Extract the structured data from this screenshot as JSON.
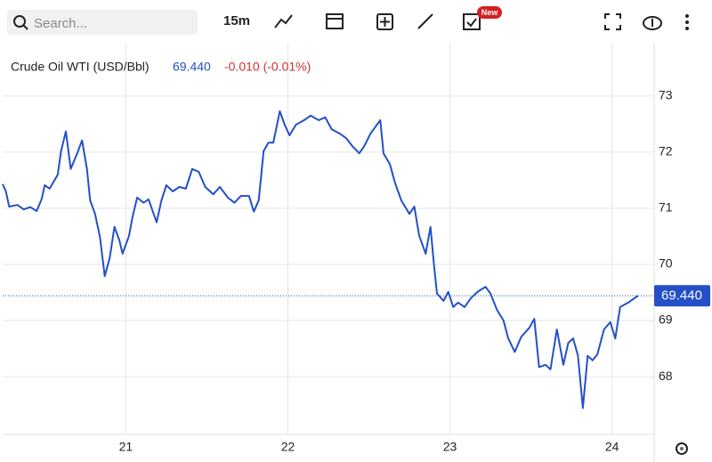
{
  "toolbar": {
    "search_placeholder": "Search...",
    "interval": "15m",
    "badge": "New"
  },
  "chart_data": {
    "type": "line",
    "change": "-0.010 (-0.01%)",
    "last": {
      "value": 69.44,
      "label": "69.440"
    },
    "x": [
      20.24,
      20.26,
      20.28,
      20.33,
      20.37,
      20.41,
      20.45,
      20.48,
      20.5,
      20.53,
      20.58,
      20.6,
      20.63,
      20.66,
      20.7,
      20.73,
      20.76,
      20.78,
      20.81,
      20.84,
      20.87,
      20.9,
      20.93,
      20.96,
      20.98,
      21.02,
      21.04,
      21.07,
      21.11,
      21.14,
      21.19,
      21.22,
      21.25,
      21.29,
      21.33,
      21.37,
      21.41,
      21.45,
      21.49,
      21.54,
      21.58,
      21.63,
      21.67,
      21.71,
      21.76,
      21.79,
      21.82,
      21.85,
      21.88,
      21.91,
      21.95,
      21.98,
      22.01,
      22.05,
      22.1,
      22.14,
      22.19,
      22.23,
      22.27,
      22.32,
      22.36,
      22.4,
      22.44,
      22.47,
      22.51,
      22.55,
      22.57,
      22.59,
      22.63,
      22.66,
      22.7,
      22.75,
      22.78,
      22.81,
      22.85,
      22.88,
      22.9,
      22.92,
      22.96,
      22.99,
      23.02,
      23.05,
      23.09,
      23.13,
      23.17,
      23.22,
      23.25,
      23.29,
      23.33,
      23.36,
      23.4,
      23.44,
      23.49,
      23.52,
      23.55,
      23.59,
      23.62,
      23.66,
      23.7,
      23.73,
      23.76,
      23.79,
      23.82,
      23.85,
      23.88,
      23.91,
      23.95,
      23.99,
      24.02,
      24.05,
      24.1,
      24.13,
      24.16
    ],
    "series": [
      {
        "name": "Crude Oil WTI (USD/Bbl)",
        "color": "#2350c8",
        "values": [
          71.43,
          71.3,
          71.03,
          71.06,
          70.98,
          71.02,
          70.95,
          71.16,
          71.41,
          71.35,
          71.6,
          72.02,
          72.37,
          71.7,
          71.98,
          72.21,
          71.7,
          71.14,
          70.9,
          70.49,
          69.79,
          70.11,
          70.67,
          70.43,
          70.19,
          70.51,
          70.83,
          71.19,
          71.1,
          71.16,
          70.75,
          71.14,
          71.41,
          71.3,
          71.38,
          71.35,
          71.7,
          71.65,
          71.38,
          71.25,
          71.38,
          71.19,
          71.1,
          71.22,
          71.22,
          70.94,
          71.14,
          72.02,
          72.17,
          72.17,
          72.73,
          72.49,
          72.3,
          72.49,
          72.57,
          72.65,
          72.57,
          72.62,
          72.41,
          72.33,
          72.25,
          72.1,
          71.98,
          72.1,
          72.33,
          72.49,
          72.57,
          71.98,
          71.78,
          71.46,
          71.14,
          70.9,
          71.03,
          70.51,
          70.19,
          70.67,
          70.03,
          69.48,
          69.35,
          69.51,
          69.24,
          69.32,
          69.24,
          69.4,
          69.51,
          69.6,
          69.48,
          69.19,
          69.0,
          68.68,
          68.44,
          68.71,
          68.87,
          69.03,
          68.17,
          68.21,
          68.13,
          68.84,
          68.21,
          68.6,
          68.68,
          68.37,
          67.44,
          68.37,
          68.29,
          68.4,
          68.84,
          68.97,
          68.68,
          69.24,
          69.32,
          69.38,
          69.44
        ]
      }
    ],
    "xlim": [
      20.24,
      24.26
    ],
    "xticks": [
      21,
      22,
      23,
      24
    ],
    "ylim": [
      66.97,
      73.95
    ],
    "yticks": [
      68,
      69,
      70,
      71,
      72,
      73
    ],
    "grid": true
  }
}
